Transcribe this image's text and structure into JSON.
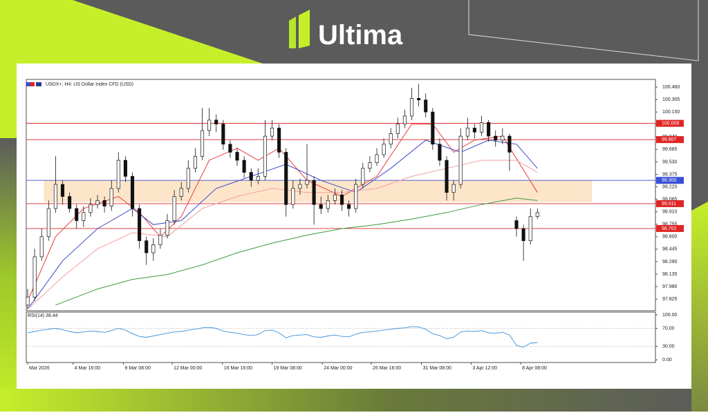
{
  "brand": "Ultima",
  "chart_data": {
    "type": "candlestick",
    "title": "USDX+, H4: US Dollar Index CFD (USD)",
    "ohlc": [
      [
        97.75,
        97.95,
        97.7,
        97.85
      ],
      [
        97.85,
        98.45,
        97.8,
        98.35
      ],
      [
        98.35,
        98.7,
        98.3,
        98.6
      ],
      [
        98.6,
        99.05,
        98.55,
        98.95
      ],
      [
        98.95,
        99.6,
        98.9,
        99.25
      ],
      [
        99.25,
        99.3,
        99.0,
        99.1
      ],
      [
        99.1,
        99.15,
        98.9,
        98.95
      ],
      [
        98.95,
        99.0,
        98.7,
        98.8
      ],
      [
        98.8,
        98.98,
        98.72,
        98.9
      ],
      [
        98.9,
        99.08,
        98.85,
        99.0
      ],
      [
        99.0,
        99.12,
        98.95,
        99.05
      ],
      [
        99.05,
        99.1,
        98.9,
        98.98
      ],
      [
        98.98,
        99.3,
        98.92,
        99.2
      ],
      [
        99.2,
        99.65,
        99.15,
        99.55
      ],
      [
        99.55,
        99.6,
        99.28,
        99.35
      ],
      [
        99.35,
        99.4,
        98.85,
        98.95
      ],
      [
        98.95,
        99.0,
        98.45,
        98.55
      ],
      [
        98.55,
        98.6,
        98.25,
        98.4
      ],
      [
        98.4,
        98.58,
        98.3,
        98.5
      ],
      [
        98.5,
        98.7,
        98.45,
        98.62
      ],
      [
        98.62,
        98.88,
        98.58,
        98.8
      ],
      [
        98.8,
        99.18,
        98.75,
        99.1
      ],
      [
        99.1,
        99.28,
        99.05,
        99.2
      ],
      [
        99.2,
        99.55,
        99.15,
        99.45
      ],
      [
        99.45,
        99.7,
        99.4,
        99.6
      ],
      [
        99.6,
        100.2,
        99.55,
        99.92
      ],
      [
        99.92,
        100.2,
        99.85,
        100.05
      ],
      [
        100.05,
        100.12,
        99.9,
        100.0
      ],
      [
        100.0,
        100.05,
        99.68,
        99.75
      ],
      [
        99.75,
        99.8,
        99.58,
        99.65
      ],
      [
        99.65,
        99.7,
        99.48,
        99.55
      ],
      [
        99.55,
        99.6,
        99.33,
        99.4
      ],
      [
        99.4,
        99.45,
        99.22,
        99.3
      ],
      [
        99.3,
        99.45,
        99.25,
        99.35
      ],
      [
        99.35,
        100.05,
        99.3,
        99.85
      ],
      [
        99.85,
        100.05,
        99.8,
        99.95
      ],
      [
        99.95,
        100.0,
        99.58,
        99.65
      ],
      [
        99.65,
        99.7,
        98.85,
        99.0
      ],
      [
        99.0,
        99.3,
        98.95,
        99.2
      ],
      [
        99.2,
        99.32,
        99.12,
        99.25
      ],
      [
        99.25,
        99.75,
        99.2,
        99.3
      ],
      [
        99.3,
        99.35,
        98.75,
        99.0
      ],
      [
        99.0,
        99.1,
        98.88,
        98.95
      ],
      [
        98.95,
        99.12,
        98.9,
        99.05
      ],
      [
        99.05,
        99.2,
        99.0,
        99.12
      ],
      [
        99.12,
        99.18,
        98.92,
        99.0
      ],
      [
        99.0,
        99.05,
        98.85,
        98.95
      ],
      [
        98.95,
        99.32,
        98.9,
        99.25
      ],
      [
        99.25,
        99.52,
        99.2,
        99.45
      ],
      [
        99.45,
        99.6,
        99.4,
        99.52
      ],
      [
        99.52,
        99.7,
        99.48,
        99.62
      ],
      [
        99.62,
        99.82,
        99.58,
        99.75
      ],
      [
        99.75,
        99.95,
        99.7,
        99.88
      ],
      [
        99.88,
        100.08,
        99.82,
        100.0
      ],
      [
        100.0,
        100.18,
        99.95,
        100.1
      ],
      [
        100.1,
        100.45,
        100.05,
        100.32
      ],
      [
        100.32,
        100.5,
        100.22,
        100.3
      ],
      [
        100.3,
        100.38,
        100.08,
        100.15
      ],
      [
        100.15,
        100.2,
        99.68,
        99.75
      ],
      [
        99.75,
        99.82,
        99.48,
        99.55
      ],
      [
        99.55,
        99.6,
        99.05,
        99.15
      ],
      [
        99.15,
        99.3,
        99.05,
        99.25
      ],
      [
        99.25,
        99.95,
        99.2,
        99.85
      ],
      [
        99.85,
        100.08,
        99.8,
        99.95
      ],
      [
        99.95,
        100.0,
        99.82,
        99.9
      ],
      [
        99.9,
        100.1,
        99.85,
        100.02
      ],
      [
        100.02,
        100.05,
        99.78,
        99.85
      ],
      [
        99.85,
        99.92,
        99.72,
        99.8
      ],
      [
        99.8,
        99.95,
        99.75,
        99.85
      ],
      [
        99.85,
        99.88,
        99.42,
        99.65
      ],
      [
        98.8,
        98.85,
        98.6,
        98.7
      ],
      [
        98.7,
        98.75,
        98.3,
        98.55
      ],
      [
        98.55,
        98.95,
        98.5,
        98.85
      ],
      [
        98.85,
        98.95,
        98.82,
        98.9
      ]
    ],
    "xlim": [
      -0.2,
      89.9
    ],
    "xticks": [
      {
        "value": 0,
        "label": "Mar 2026"
      },
      {
        "value": 6.5,
        "label": "4 Mar 16:00"
      },
      {
        "value": 13.7,
        "label": "9 Mar 08:00"
      },
      {
        "value": 20.7,
        "label": "12 Mar 00:00"
      },
      {
        "value": 27.9,
        "label": "16 Mar 16:00"
      },
      {
        "value": 35,
        "label": "19 Mar 08:00"
      },
      {
        "value": 42.2,
        "label": "24 Mar 00:00"
      },
      {
        "value": 49.2,
        "label": "26 Mar 16:00"
      },
      {
        "value": 56.4,
        "label": "31 Mar 08:00"
      },
      {
        "value": 63.5,
        "label": "3 Apr 12:00"
      },
      {
        "value": 70.6,
        "label": "8 Apr 08:00"
      }
    ],
    "ylim": [
      97.68,
      100.555
    ],
    "yticks": [
      {
        "value": 100.46,
        "label": "100.460"
      },
      100.305,
      {
        "value": 100.15,
        "label": "100.150"
      },
      99.995,
      {
        "value": 99.84,
        "label": "99.840"
      },
      99.685,
      {
        "value": 99.53,
        "label": "99.530"
      },
      99.375,
      {
        "value": 99.22,
        "label": "99.220"
      },
      99.065,
      {
        "value": 98.91,
        "label": "98.910"
      },
      98.755,
      {
        "value": 98.6,
        "label": "98.600"
      },
      98.445,
      {
        "value": 98.29,
        "label": "98.290"
      },
      98.135,
      {
        "value": 97.98,
        "label": "97.980"
      },
      97.825
    ],
    "levels": [
      {
        "value": 100.009,
        "label": "100.009",
        "color": "#e02424"
      },
      {
        "value": 99.807,
        "label": "99.807",
        "color": "#e02424"
      },
      {
        "value": 99.3,
        "label": "99.300",
        "color": "#3a4fd8"
      },
      {
        "value": 99.011,
        "label": "99.011",
        "color": "#e02424"
      },
      {
        "value": 98.702,
        "label": "98.702",
        "color": "#e02424"
      }
    ],
    "zone": {
      "low": 99.03,
      "high": 99.3,
      "xrange": [
        2.3,
        80.8
      ],
      "color": "#fde2c4"
    },
    "moving_averages": [
      {
        "color": "#e83a3a",
        "x": [
          0,
          4,
          8,
          13,
          16,
          19,
          22,
          26,
          30,
          33,
          36,
          40,
          45,
          50,
          55,
          58,
          61,
          64,
          68,
          73
        ],
        "values": [
          97.8,
          98.6,
          98.95,
          99.1,
          98.9,
          98.6,
          98.85,
          99.55,
          99.7,
          99.55,
          99.7,
          99.3,
          99.1,
          99.35,
          100.0,
          100.0,
          99.65,
          99.8,
          99.85,
          99.15
        ]
      },
      {
        "color": "#3848c8",
        "x": [
          0,
          5,
          10,
          15,
          18,
          22,
          27,
          32,
          37,
          42,
          47,
          52,
          57,
          62,
          66,
          70,
          73
        ],
        "values": [
          97.7,
          98.3,
          98.7,
          98.95,
          98.75,
          98.8,
          99.2,
          99.35,
          99.5,
          99.3,
          99.15,
          99.45,
          99.8,
          99.65,
          99.8,
          99.75,
          99.45
        ]
      },
      {
        "color": "#f0a0a0",
        "x": [
          0,
          5,
          10,
          15,
          20,
          25,
          30,
          35,
          40,
          45,
          50,
          55,
          60,
          65,
          70,
          73
        ],
        "values": [
          97.7,
          98.1,
          98.45,
          98.65,
          98.6,
          98.95,
          99.1,
          99.2,
          99.15,
          99.15,
          99.2,
          99.35,
          99.45,
          99.55,
          99.55,
          99.4
        ]
      },
      {
        "color": "#3a9a3a",
        "x": [
          4,
          10,
          15,
          20,
          25,
          30,
          35,
          40,
          45,
          50,
          55,
          60,
          65,
          70,
          73
        ],
        "values": [
          97.75,
          97.95,
          98.07,
          98.13,
          98.25,
          98.4,
          98.52,
          98.62,
          98.7,
          98.75,
          98.82,
          98.9,
          99.0,
          99.08,
          99.05
        ]
      }
    ],
    "rsi": {
      "label": "RSI(14) 38.44",
      "color": "#3a8fd8",
      "ylim": [
        -6,
        106
      ],
      "yticks": [
        {
          "value": 100,
          "label": "100.00"
        },
        {
          "value": 70,
          "label": "70.00"
        },
        {
          "value": 30,
          "label": "30.00"
        },
        {
          "value": 0,
          "label": "0.00"
        }
      ],
      "values": [
        60,
        63,
        66,
        68,
        70,
        67,
        63,
        60,
        62,
        64,
        63,
        61,
        65,
        70,
        66,
        58,
        52,
        50,
        53,
        56,
        59,
        62,
        63,
        66,
        68,
        71,
        72,
        70,
        64,
        61,
        59,
        56,
        54,
        56,
        65,
        66,
        60,
        49,
        54,
        55,
        56,
        51,
        50,
        53,
        55,
        52,
        51,
        57,
        61,
        62,
        64,
        66,
        68,
        70,
        71,
        74,
        73,
        68,
        58,
        54,
        47,
        50,
        62,
        64,
        63,
        65,
        60,
        59,
        61,
        55,
        32,
        28,
        37,
        38.44
      ]
    }
  }
}
